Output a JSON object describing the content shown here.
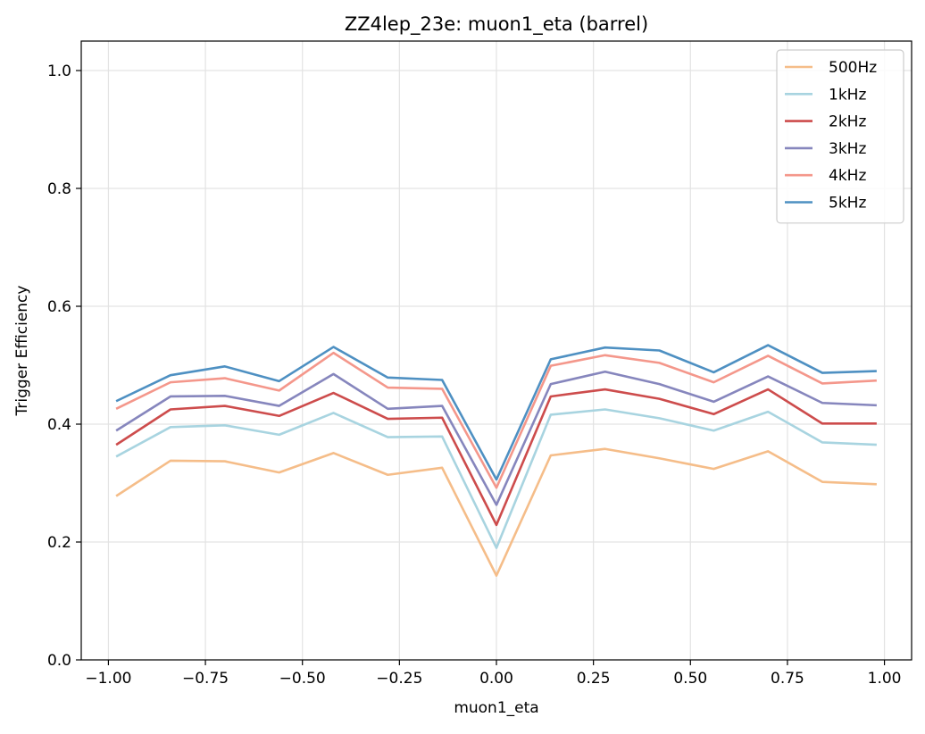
{
  "chart_data": {
    "type": "line",
    "title": "ZZ4lep_23e: muon1_eta (barrel)",
    "xlabel": "muon1_eta",
    "ylabel": "Trigger Efficiency",
    "xlim": [
      -1.07,
      1.07
    ],
    "ylim": [
      0.0,
      1.05
    ],
    "xticks": [
      -1.0,
      -0.75,
      -0.5,
      -0.25,
      0.0,
      0.25,
      0.5,
      0.75,
      1.0
    ],
    "xtick_labels": [
      "−1.00",
      "−0.75",
      "−0.50",
      "−0.25",
      "0.00",
      "0.25",
      "0.50",
      "0.75",
      "1.00"
    ],
    "yticks": [
      0.0,
      0.2,
      0.4,
      0.6,
      0.8,
      1.0
    ],
    "ytick_labels": [
      "0.0",
      "0.2",
      "0.4",
      "0.6",
      "0.8",
      "1.0"
    ],
    "grid": true,
    "legend_position": "top-right",
    "x": [
      -0.98,
      -0.84,
      -0.7,
      -0.56,
      -0.42,
      -0.28,
      -0.14,
      0.0,
      0.14,
      0.28,
      0.42,
      0.56,
      0.7,
      0.84,
      0.98
    ],
    "series": [
      {
        "name": "500Hz",
        "color": "#f5bd89",
        "values": [
          0.278,
          0.338,
          0.337,
          0.318,
          0.351,
          0.314,
          0.326,
          0.143,
          0.347,
          0.358,
          0.342,
          0.324,
          0.354,
          0.302,
          0.298
        ]
      },
      {
        "name": "1kHz",
        "color": "#a8d4e0",
        "values": [
          0.345,
          0.395,
          0.398,
          0.382,
          0.419,
          0.378,
          0.379,
          0.19,
          0.416,
          0.425,
          0.41,
          0.389,
          0.421,
          0.369,
          0.365
        ]
      },
      {
        "name": "2kHz",
        "color": "#cd4c4c",
        "values": [
          0.365,
          0.425,
          0.431,
          0.414,
          0.453,
          0.409,
          0.411,
          0.229,
          0.447,
          0.459,
          0.443,
          0.417,
          0.459,
          0.401,
          0.401
        ]
      },
      {
        "name": "3kHz",
        "color": "#8686bd",
        "values": [
          0.389,
          0.447,
          0.448,
          0.431,
          0.485,
          0.426,
          0.431,
          0.263,
          0.468,
          0.489,
          0.468,
          0.438,
          0.481,
          0.436,
          0.432
        ]
      },
      {
        "name": "4kHz",
        "color": "#f4978b",
        "values": [
          0.426,
          0.471,
          0.478,
          0.457,
          0.521,
          0.462,
          0.46,
          0.292,
          0.499,
          0.517,
          0.504,
          0.471,
          0.516,
          0.469,
          0.474
        ]
      },
      {
        "name": "5kHz",
        "color": "#4e90c2",
        "values": [
          0.439,
          0.483,
          0.498,
          0.473,
          0.531,
          0.479,
          0.475,
          0.306,
          0.51,
          0.53,
          0.525,
          0.488,
          0.534,
          0.487,
          0.49
        ]
      }
    ]
  }
}
